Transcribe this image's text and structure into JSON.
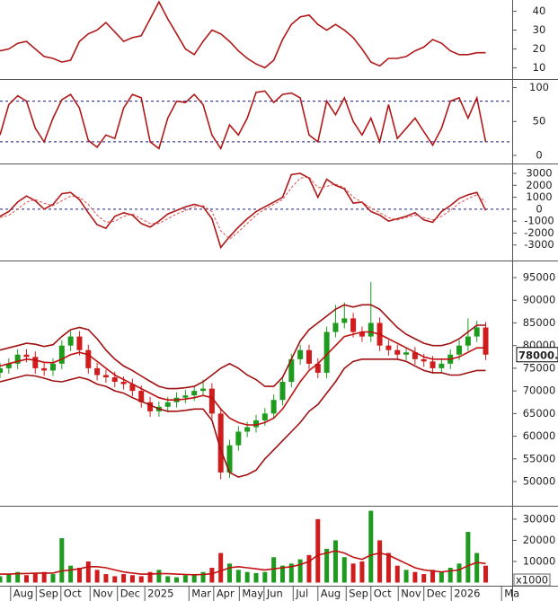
{
  "chart_data": [
    {
      "type": "line",
      "xlim": [
        0,
        58
      ],
      "ylim": [
        4,
        46
      ],
      "yticks": [
        10,
        20,
        30,
        40
      ],
      "series": [
        {
          "color": "#b01818",
          "values": [
            19,
            20,
            23,
            24,
            20,
            16,
            15,
            13,
            14,
            24,
            28,
            30,
            34,
            29,
            24,
            26,
            27,
            36,
            45,
            36,
            28,
            20,
            17,
            24,
            30,
            28,
            24,
            19,
            15,
            12,
            10,
            14,
            25,
            33,
            37,
            38,
            33,
            30,
            33,
            30,
            26,
            20,
            13,
            11,
            15,
            15,
            16,
            19,
            21,
            25,
            23,
            19,
            17,
            17,
            18,
            18
          ]
        }
      ]
    },
    {
      "type": "line",
      "xlim": [
        0,
        58
      ],
      "ylim": [
        -12,
        110
      ],
      "yticks": [
        0,
        50,
        100
      ],
      "reference_lines": [
        20,
        80
      ],
      "series": [
        {
          "color": "#b01818",
          "values": [
            30,
            75,
            88,
            80,
            40,
            20,
            55,
            82,
            90,
            70,
            22,
            12,
            30,
            25,
            70,
            90,
            85,
            20,
            10,
            55,
            80,
            78,
            90,
            75,
            30,
            10,
            45,
            30,
            55,
            93,
            95,
            78,
            90,
            92,
            85,
            30,
            20,
            80,
            60,
            85,
            50,
            30,
            55,
            20,
            75,
            25,
            40,
            55,
            35,
            15,
            40,
            80,
            85,
            55,
            85,
            20
          ]
        }
      ]
    },
    {
      "type": "line",
      "xlim": [
        0,
        58
      ],
      "ylim": [
        -4300,
        3600
      ],
      "yticks": [
        -3000,
        -2000,
        -1000,
        0,
        1000,
        2000,
        3000
      ],
      "reference_lines": [
        0
      ],
      "series": [
        {
          "color": "#b01818",
          "values": [
            -600,
            -200,
            600,
            1100,
            700,
            0,
            400,
            1300,
            1400,
            800,
            -300,
            -1300,
            -1600,
            -600,
            -300,
            -500,
            -1200,
            -1500,
            -1000,
            -400,
            -100,
            200,
            400,
            200,
            -800,
            -3200,
            -2300,
            -1500,
            -800,
            -200,
            200,
            600,
            1000,
            2900,
            3000,
            2600,
            1000,
            2500,
            2000,
            1700,
            500,
            600,
            -200,
            -500,
            -1000,
            -800,
            -600,
            -300,
            -900,
            -1100,
            -200,
            300,
            900,
            1200,
            1400,
            -100
          ]
        },
        {
          "color": "#e05050",
          "style": "dashed",
          "values": [
            -700,
            -500,
            0,
            600,
            800,
            500,
            300,
            700,
            1100,
            1000,
            400,
            -500,
            -1100,
            -1000,
            -600,
            -400,
            -800,
            -1200,
            -1200,
            -800,
            -400,
            -100,
            200,
            300,
            -200,
            -1800,
            -2500,
            -1900,
            -1200,
            -500,
            0,
            400,
            800,
            1800,
            2600,
            2700,
            1800,
            1900,
            2100,
            1800,
            1000,
            600,
            100,
            -300,
            -700,
            -900,
            -700,
            -500,
            -700,
            -900,
            -600,
            -100,
            500,
            900,
            1200,
            600
          ]
        }
      ]
    },
    {
      "type": "candlestick",
      "xlim": [
        0,
        58
      ],
      "ylim": [
        44650,
        98370
      ],
      "yticks": [
        50000,
        55000,
        60000,
        65000,
        70000,
        75000,
        80000,
        85000,
        90000,
        95000
      ],
      "up_color": "#1e9a1e",
      "down_color": "#d01c1c",
      "last_price": {
        "value": 78000,
        "label": "78000.00"
      },
      "open": [
        74000,
        75000,
        76000,
        78000,
        77500,
        75000,
        74500,
        76000,
        80000,
        82000,
        79000,
        75000,
        73500,
        73000,
        72000,
        71500,
        70000,
        67500,
        65500,
        66500,
        67500,
        68500,
        69000,
        70000,
        70500,
        65000,
        52000,
        58000,
        61000,
        62000,
        63500,
        65000,
        68000,
        72000,
        77000,
        79000,
        76000,
        74000,
        83000,
        85000,
        86000,
        83000,
        82000,
        85000,
        80000,
        79000,
        78000,
        78500,
        77000,
        76500,
        75000,
        76000,
        78000,
        80000,
        82000,
        84000
      ],
      "high": [
        76200,
        77200,
        79200,
        79200,
        78700,
        76200,
        77200,
        81200,
        83200,
        83200,
        80200,
        76200,
        74700,
        74200,
        73200,
        72700,
        71200,
        68700,
        67700,
        68700,
        69700,
        70200,
        71200,
        72500,
        71700,
        66200,
        59200,
        62200,
        63200,
        64700,
        66200,
        69200,
        73200,
        78200,
        80200,
        80200,
        77200,
        84200,
        89000,
        89500,
        87200,
        84200,
        94000,
        86200,
        81200,
        80200,
        79700,
        79700,
        78200,
        77700,
        77200,
        79200,
        81200,
        86000,
        85500,
        85200
      ],
      "low": [
        72800,
        73800,
        74800,
        76300,
        73800,
        73300,
        73300,
        74800,
        78800,
        77800,
        73800,
        72300,
        71800,
        70800,
        70300,
        68800,
        66300,
        64300,
        64300,
        65300,
        66300,
        67300,
        67800,
        68800,
        63800,
        50500,
        50800,
        56800,
        59800,
        60800,
        62300,
        63800,
        66800,
        70800,
        75800,
        74800,
        72800,
        72800,
        81800,
        83800,
        81800,
        80800,
        80800,
        78800,
        77800,
        76800,
        76800,
        75800,
        75300,
        73800,
        73800,
        74800,
        76800,
        78800,
        80800,
        76800
      ],
      "close": [
        75000,
        76000,
        78000,
        77500,
        75000,
        74500,
        76000,
        80000,
        82000,
        79000,
        75000,
        73500,
        73000,
        72000,
        71500,
        70000,
        67500,
        65500,
        66500,
        67500,
        68500,
        69000,
        70000,
        70500,
        65000,
        52000,
        58000,
        61000,
        62000,
        63500,
        65000,
        68000,
        72000,
        77000,
        79000,
        76000,
        74000,
        83000,
        85000,
        86000,
        83000,
        82000,
        85000,
        80000,
        79000,
        78000,
        78500,
        77000,
        76500,
        75000,
        76000,
        78000,
        80000,
        82000,
        84000,
        78000
      ],
      "series": [
        {
          "color": "#a01010",
          "values": [
            79000,
            79500,
            80000,
            80500,
            80300,
            79800,
            80200,
            82000,
            83500,
            84000,
            83500,
            81500,
            79000,
            77000,
            75500,
            74500,
            73300,
            72100,
            71000,
            70500,
            70500,
            70700,
            71000,
            72000,
            73500,
            75000,
            76000,
            75000,
            73500,
            72500,
            71000,
            71000,
            73000,
            77000,
            81000,
            83500,
            85000,
            86500,
            88000,
            89000,
            88500,
            89000,
            89000,
            88000,
            86000,
            84000,
            82500,
            81500,
            80500,
            80000,
            80000,
            80500,
            81500,
            83000,
            84500,
            84500
          ]
        },
        {
          "color": "#c01010",
          "values": [
            75500,
            76000,
            76500,
            77000,
            76800,
            76300,
            76200,
            77000,
            78000,
            78500,
            78000,
            76500,
            75000,
            73500,
            72500,
            71500,
            70500,
            69500,
            68500,
            68000,
            68000,
            68200,
            68500,
            69000,
            68500,
            66000,
            64000,
            63000,
            62500,
            62500,
            63000,
            64000,
            66000,
            69000,
            72000,
            74500,
            76000,
            78000,
            80000,
            82000,
            82500,
            83000,
            83000,
            82500,
            81500,
            80500,
            79500,
            78500,
            77500,
            77000,
            77000,
            77000,
            77500,
            78500,
            79500,
            79500
          ]
        },
        {
          "color": "#a01010",
          "values": [
            72000,
            72500,
            73000,
            73500,
            73300,
            72800,
            72200,
            72000,
            72500,
            73000,
            72500,
            71500,
            71000,
            70000,
            69500,
            68500,
            67700,
            66900,
            66000,
            65500,
            65500,
            65700,
            66000,
            66000,
            63500,
            57000,
            52000,
            51000,
            51500,
            52500,
            55000,
            57000,
            59000,
            61000,
            63000,
            65500,
            67000,
            69500,
            72000,
            75000,
            76500,
            77000,
            77000,
            77000,
            77000,
            77000,
            76500,
            75500,
            74500,
            74000,
            74000,
            73500,
            73500,
            74000,
            74500,
            74500
          ]
        }
      ]
    },
    {
      "type": "bar",
      "xlim": [
        0,
        58
      ],
      "ylim": [
        -1500,
        35500
      ],
      "yticks": [
        10000,
        20000,
        30000
      ],
      "unit_label": "x1000",
      "up_color": "#1e9a1e",
      "down_color": "#d01c1c",
      "values": [
        3000,
        4000,
        5000,
        3500,
        4500,
        5000,
        4000,
        21000,
        8000,
        7000,
        10000,
        6000,
        4000,
        3000,
        4000,
        3500,
        3000,
        5000,
        6000,
        3000,
        2500,
        3500,
        4000,
        5000,
        7000,
        14000,
        9000,
        6000,
        5000,
        4500,
        5000,
        12000,
        8000,
        9000,
        11000,
        13000,
        30000,
        16000,
        20000,
        12000,
        9000,
        10000,
        34000,
        20000,
        14000,
        8000,
        6000,
        5000,
        4000,
        6000,
        5000,
        7000,
        9000,
        24000,
        14000,
        8000
      ],
      "series": [
        {
          "color": "#c01010",
          "values": [
            4000,
            4000,
            4200,
            4300,
            4400,
            4500,
            4500,
            5500,
            6000,
            6500,
            7500,
            7500,
            7000,
            6000,
            5000,
            4500,
            4000,
            4000,
            4200,
            4200,
            4000,
            3800,
            3700,
            3800,
            4200,
            5500,
            7000,
            7500,
            7000,
            6500,
            6000,
            6500,
            7000,
            7500,
            8500,
            10000,
            13000,
            14000,
            15000,
            14000,
            12000,
            11000,
            13000,
            14000,
            13000,
            11000,
            9000,
            7000,
            6000,
            5500,
            5000,
            5500,
            6000,
            8000,
            9500,
            9000
          ]
        }
      ],
      "xticks": [
        {
          "value": 1.2,
          "label": "Aug"
        },
        {
          "value": 4.1,
          "label": "Sep"
        },
        {
          "value": 6.9,
          "label": "Oct"
        },
        {
          "value": 10.2,
          "label": "Nov"
        },
        {
          "value": 13.3,
          "label": "Dec"
        },
        {
          "value": 16.4,
          "label": "2025"
        },
        {
          "value": 21.4,
          "label": "Mar"
        },
        {
          "value": 24.2,
          "label": "Apr"
        },
        {
          "value": 27.1,
          "label": "May"
        },
        {
          "value": 29.9,
          "label": "Jun"
        },
        {
          "value": 33.2,
          "label": "Jul"
        },
        {
          "value": 36.0,
          "label": "Aug"
        },
        {
          "value": 39.2,
          "label": "Sep"
        },
        {
          "value": 42.0,
          "label": "Oct"
        },
        {
          "value": 45.1,
          "label": "Nov"
        },
        {
          "value": 48.0,
          "label": "Dec"
        },
        {
          "value": 51.1,
          "label": "2026"
        },
        {
          "value": 56.8,
          "label": "Ma"
        }
      ]
    }
  ]
}
